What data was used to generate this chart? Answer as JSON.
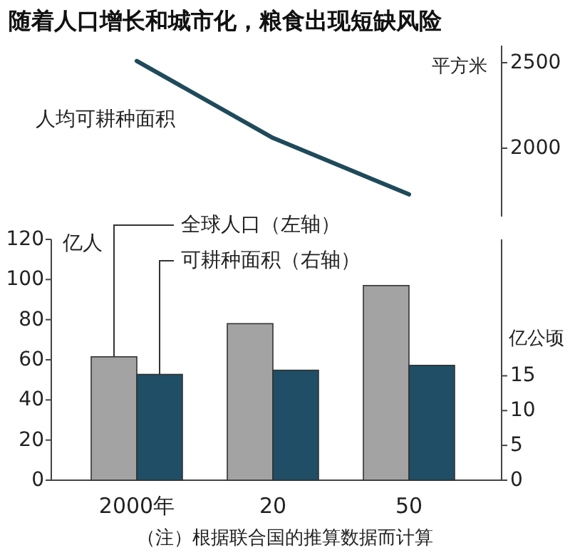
{
  "chart_data": [
    {
      "type": "line",
      "title": "随着人口增长和城市化，粮食出现短缺风险",
      "ylabel": "平方米",
      "categories": [
        null,
        null,
        null
      ],
      "tick_labels": "y",
      "series": [
        {
          "name": "人均可耕种面积",
          "color": "#1f4a5a",
          "values": [
            2510,
            2060,
            1730
          ]
        }
      ],
      "ylim": [
        1600,
        2600
      ],
      "yticks": [
        2000,
        2500
      ]
    },
    {
      "type": "bar",
      "ylabel": "亿人",
      "y2label": "亿公顷",
      "categories": [
        "2000年",
        "20",
        "50"
      ],
      "series": [
        {
          "name": "全球人口（左轴）",
          "color": "#a3a3a3",
          "values": [
            61.5,
            78,
            97
          ]
        },
        {
          "name": "可耕种面积（右轴）",
          "color": "#1f4e66",
          "axis": "y2",
          "values": [
            15.2,
            15.8,
            16.5
          ]
        }
      ],
      "ylim": [
        0,
        120
      ],
      "yticks": [
        0,
        20,
        40,
        60,
        80,
        100,
        120
      ],
      "y2lim": [
        0,
        34.6
      ],
      "y2ticks": [
        0,
        5,
        10,
        15
      ],
      "annotations": [
        "（注）根据联合国的推算数据而计算"
      ]
    }
  ]
}
